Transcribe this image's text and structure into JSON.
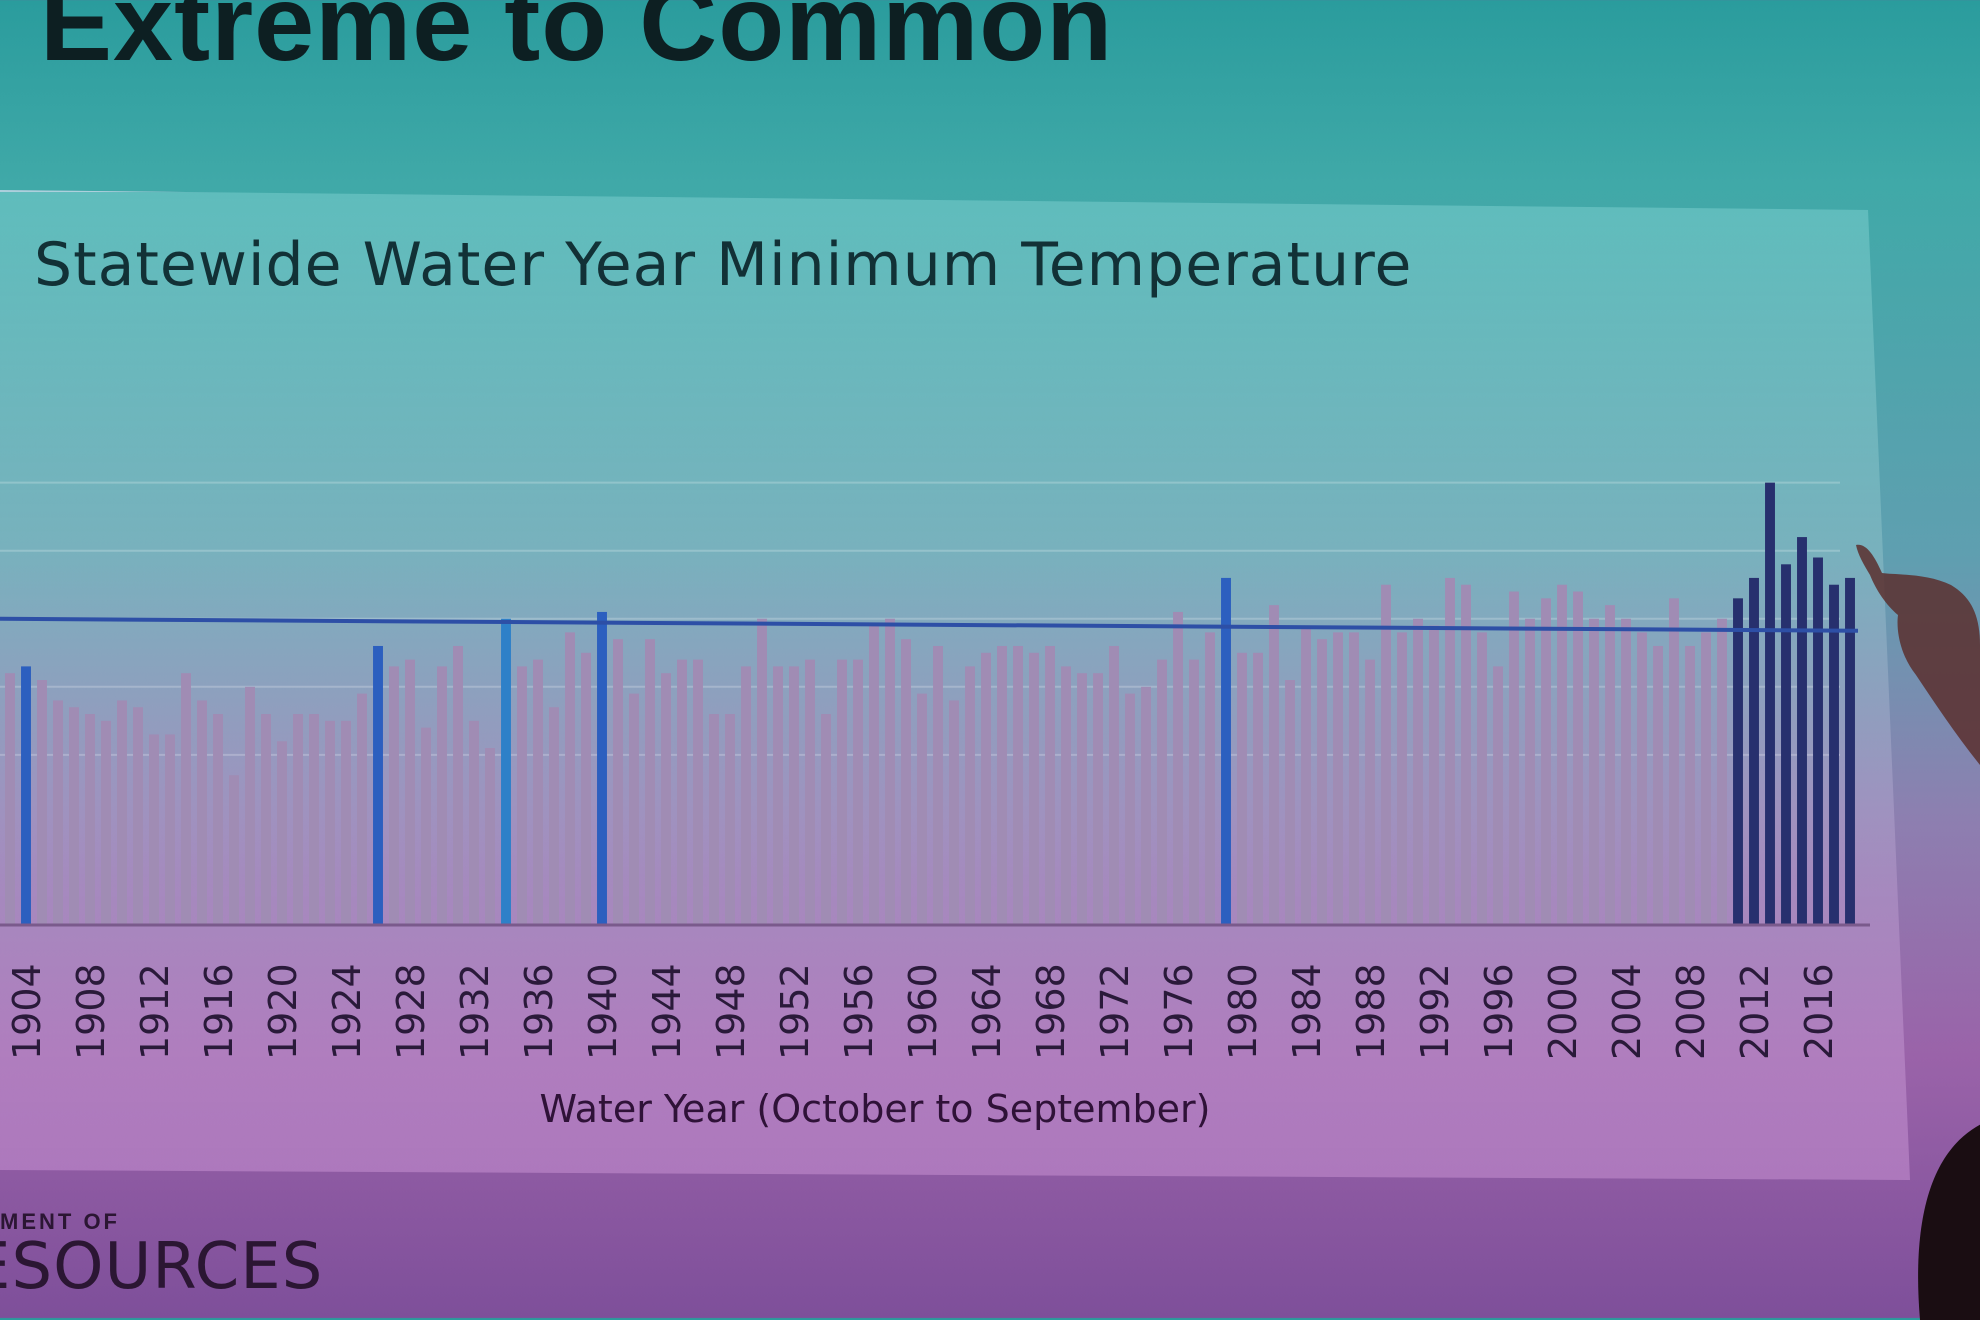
{
  "slide": {
    "title": "Extreme to Common"
  },
  "footer": {
    "logo_top": "MENT OF",
    "logo_bottom": "ESOURCES"
  },
  "colors": {
    "bar_normal": "#a08cb4",
    "bar_extreme_mid": "#2c5fbf",
    "bar_extreme_dark": "#27306e",
    "bar_record_1932": "#2e80c8",
    "threshold_line": "#2d4fa6"
  },
  "chart_data": {
    "type": "bar",
    "title": "Statewide Water Year Minimum Temperature",
    "xlabel": "Water Year (October to September)",
    "ylabel": "",
    "years_range": [
      1903,
      2018
    ],
    "tick_labels": [
      "1904",
      "1908",
      "1912",
      "1916",
      "1920",
      "1924",
      "1928",
      "1932",
      "1936",
      "1940",
      "1944",
      "1948",
      "1952",
      "1956",
      "1960",
      "1964",
      "1968",
      "1972",
      "1976",
      "1980",
      "1984",
      "1988",
      "1992",
      "1996",
      "2000",
      "2004",
      "2008",
      "2012",
      "2016"
    ],
    "threshold_value": 38.0,
    "ylim": [
      33.5,
      40.7
    ],
    "grid": true,
    "highlight_note": "bars exceeding the running maximum are drawn in blue",
    "categories": [
      1903,
      1904,
      1905,
      1906,
      1907,
      1908,
      1909,
      1910,
      1911,
      1912,
      1913,
      1914,
      1915,
      1916,
      1917,
      1918,
      1919,
      1920,
      1921,
      1922,
      1923,
      1924,
      1925,
      1926,
      1927,
      1928,
      1929,
      1930,
      1931,
      1932,
      1933,
      1934,
      1935,
      1936,
      1937,
      1938,
      1939,
      1940,
      1941,
      1942,
      1943,
      1944,
      1945,
      1946,
      1947,
      1948,
      1949,
      1950,
      1951,
      1952,
      1953,
      1954,
      1955,
      1956,
      1957,
      1958,
      1959,
      1960,
      1961,
      1962,
      1963,
      1964,
      1965,
      1966,
      1967,
      1968,
      1969,
      1970,
      1971,
      1972,
      1973,
      1974,
      1975,
      1976,
      1977,
      1978,
      1979,
      1980,
      1981,
      1982,
      1983,
      1984,
      1985,
      1986,
      1987,
      1988,
      1989,
      1990,
      1991,
      1992,
      1993,
      1994,
      1995,
      1996,
      1997,
      1998,
      1999,
      2000,
      2001,
      2002,
      2003,
      2004,
      2005,
      2006,
      2007,
      2008,
      2009,
      2010,
      2011,
      2012,
      2013,
      2014,
      2015,
      2016,
      2017,
      2018
    ],
    "values": [
      37.2,
      37.3,
      37.1,
      36.8,
      36.7,
      36.6,
      36.5,
      36.8,
      36.7,
      36.3,
      36.3,
      37.2,
      36.8,
      36.6,
      35.7,
      37.0,
      36.6,
      36.2,
      36.6,
      36.6,
      36.5,
      36.5,
      36.9,
      37.6,
      37.3,
      37.4,
      36.4,
      37.3,
      37.6,
      36.5,
      36.1,
      38.0,
      37.3,
      37.4,
      36.7,
      37.8,
      37.5,
      38.1,
      37.7,
      36.9,
      37.7,
      37.2,
      37.4,
      37.4,
      36.6,
      36.6,
      37.3,
      38.0,
      37.3,
      37.3,
      37.4,
      36.6,
      37.4,
      37.4,
      37.9,
      38.0,
      37.7,
      36.9,
      37.6,
      36.8,
      37.3,
      37.5,
      37.6,
      37.6,
      37.5,
      37.6,
      37.3,
      37.2,
      37.2,
      37.6,
      36.9,
      37.0,
      37.4,
      38.1,
      37.4,
      37.8,
      38.6,
      37.5,
      37.5,
      38.2,
      37.1,
      37.9,
      37.7,
      37.8,
      37.8,
      37.4,
      38.5,
      37.8,
      38.0,
      37.9,
      38.6,
      38.5,
      37.8,
      37.3,
      38.4,
      38.0,
      38.3,
      38.5,
      38.4,
      38.0,
      38.2,
      38.0,
      37.8,
      37.6,
      38.3,
      37.6,
      37.8,
      38.0,
      38.3,
      38.6,
      40.0,
      38.8,
      39.2,
      38.9,
      38.5,
      38.6
    ]
  }
}
